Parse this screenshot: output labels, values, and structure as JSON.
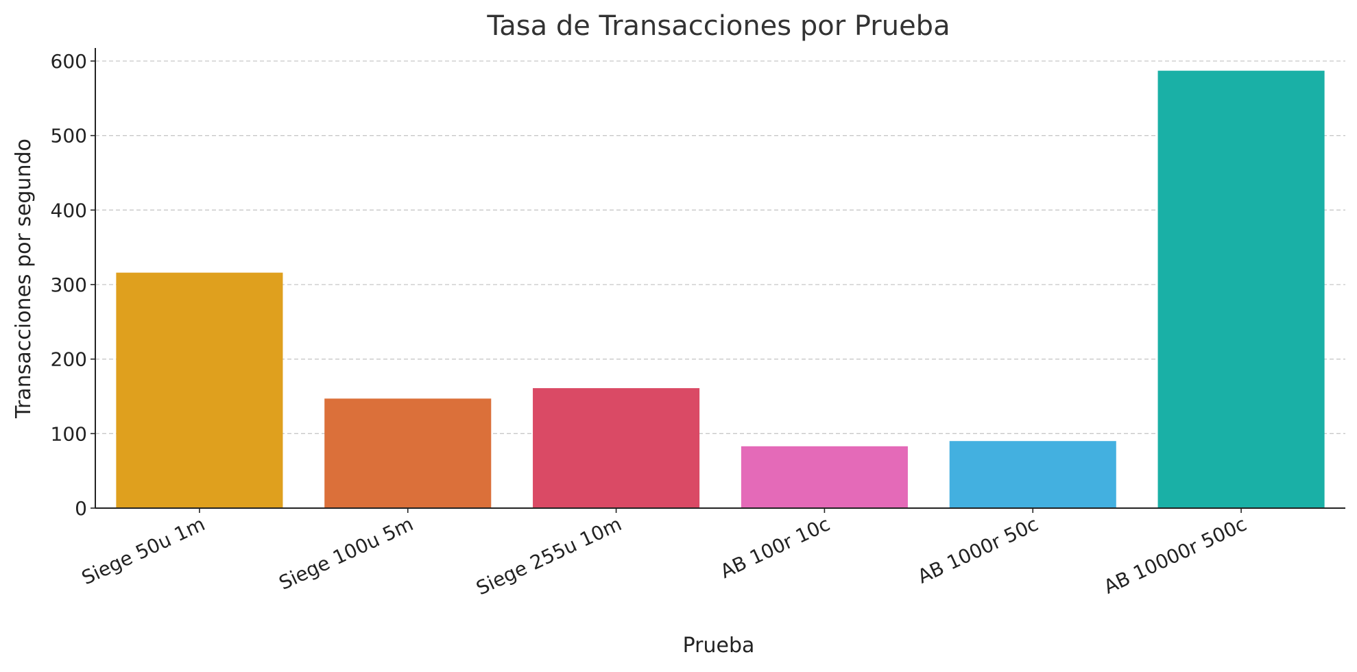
{
  "chart_data": {
    "type": "bar",
    "title": "Tasa de Transacciones por Prueba",
    "xlabel": "Prueba",
    "ylabel": "Transacciones por segundo",
    "categories": [
      "Siege 50u 1m",
      "Siege 100u 5m",
      "Siege 255u 10m",
      "AB 100r 10c",
      "AB 1000r 50c",
      "AB 10000r 500c"
    ],
    "values": [
      316,
      147,
      161,
      83,
      90,
      587
    ],
    "colors": [
      "#DFA01E",
      "#DB703A",
      "#DA4A65",
      "#E46AB8",
      "#43B0E0",
      "#1AB0A6"
    ],
    "ylim": [
      0,
      615
    ],
    "yticks": [
      0,
      100,
      200,
      300,
      400,
      500,
      600
    ],
    "grid": "y-dashed",
    "legend": "none"
  }
}
